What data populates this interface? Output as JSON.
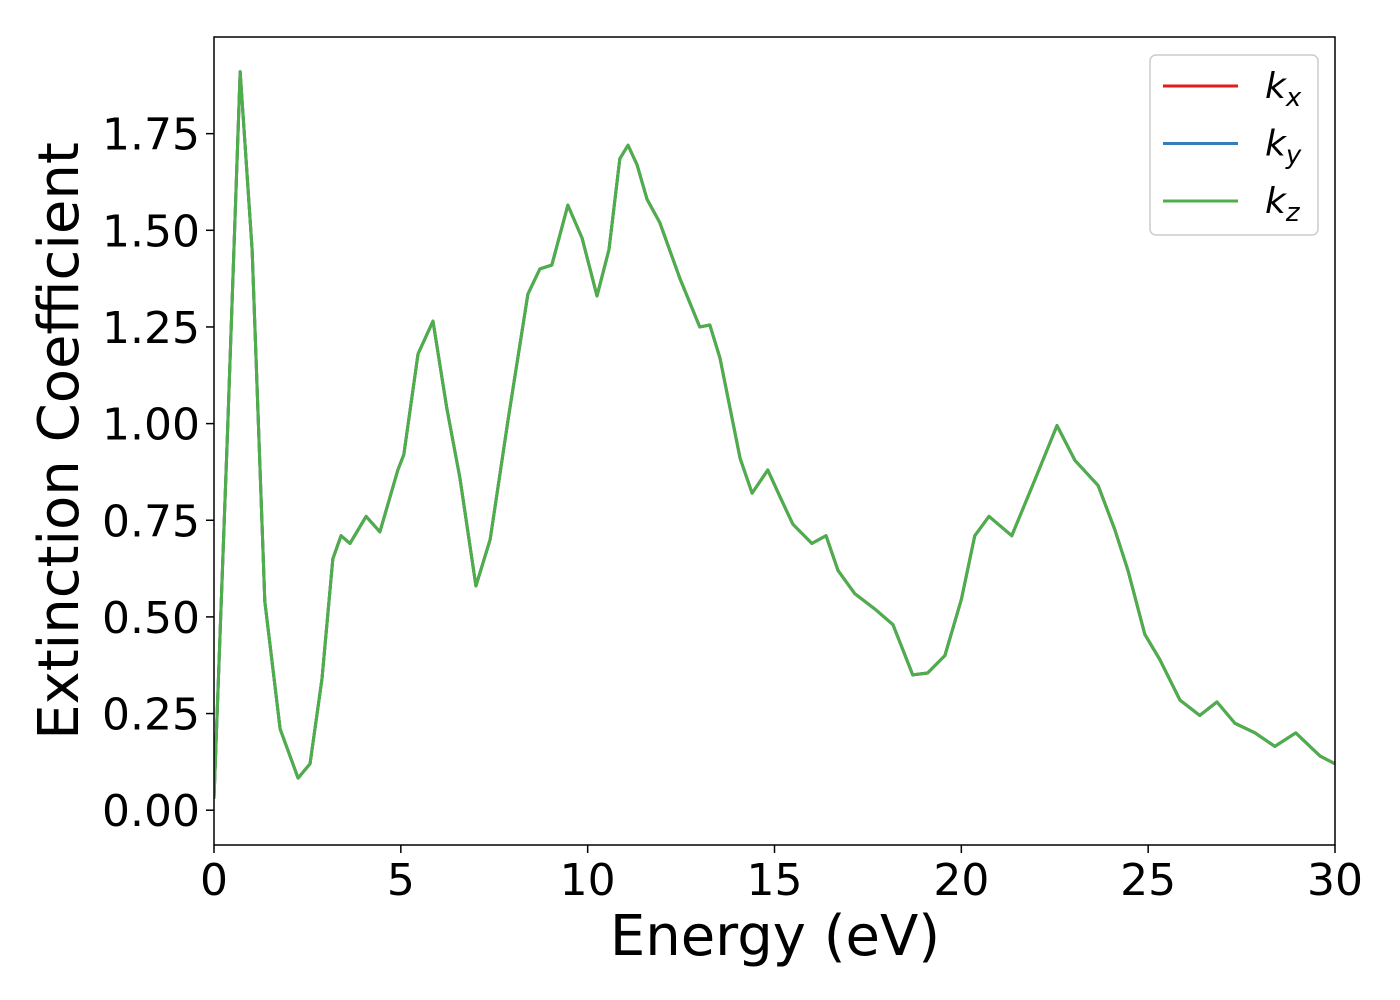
{
  "chart_data": {
    "type": "line",
    "xlabel": "Energy (eV)",
    "ylabel": "Extinction Coefficient",
    "x": [
      0,
      0.37,
      0.7,
      1.02,
      1.36,
      1.77,
      2.25,
      2.57,
      2.89,
      3.18,
      3.4,
      3.64,
      4.07,
      4.44,
      4.92,
      5.08,
      5.46,
      5.86,
      6.23,
      6.58,
      7.01,
      7.39,
      7.87,
      8.4,
      8.72,
      9.04,
      9.47,
      9.85,
      10.25,
      10.57,
      10.86,
      11.08,
      11.32,
      11.59,
      11.93,
      12.47,
      13.0,
      13.27,
      13.54,
      14.08,
      14.4,
      14.82,
      15.15,
      15.49,
      16.0,
      16.38,
      16.7,
      17.15,
      17.69,
      18.17,
      18.7,
      19.1,
      19.56,
      20.0,
      20.36,
      20.74,
      21.35,
      21.97,
      22.56,
      23.04,
      23.66,
      24.11,
      24.46,
      24.91,
      25.31,
      25.85,
      26.38,
      26.84,
      27.32,
      27.86,
      28.39,
      28.95,
      29.6,
      30.0
    ],
    "series": [
      {
        "name": "kx",
        "color": "#e41a1c",
        "values": [
          0.03,
          1.0,
          1.91,
          1.45,
          0.54,
          0.21,
          0.083,
          0.12,
          0.34,
          0.65,
          0.71,
          0.69,
          0.76,
          0.72,
          0.88,
          0.92,
          1.18,
          1.265,
          1.04,
          0.86,
          0.58,
          0.7,
          1.01,
          1.335,
          1.4,
          1.41,
          1.565,
          1.48,
          1.33,
          1.45,
          1.685,
          1.72,
          1.67,
          1.58,
          1.52,
          1.375,
          1.25,
          1.255,
          1.17,
          0.91,
          0.82,
          0.88,
          0.81,
          0.74,
          0.69,
          0.71,
          0.62,
          0.56,
          0.52,
          0.48,
          0.35,
          0.355,
          0.4,
          0.545,
          0.71,
          0.76,
          0.71,
          0.855,
          0.995,
          0.905,
          0.84,
          0.725,
          0.62,
          0.455,
          0.39,
          0.285,
          0.245,
          0.28,
          0.225,
          0.2,
          0.165,
          0.2,
          0.14,
          0.12
        ]
      },
      {
        "name": "ky",
        "color": "#377eb8",
        "values": [
          0.03,
          1.0,
          1.91,
          1.45,
          0.54,
          0.21,
          0.083,
          0.12,
          0.34,
          0.65,
          0.71,
          0.69,
          0.76,
          0.72,
          0.88,
          0.92,
          1.18,
          1.265,
          1.04,
          0.86,
          0.58,
          0.7,
          1.01,
          1.335,
          1.4,
          1.41,
          1.565,
          1.48,
          1.33,
          1.45,
          1.685,
          1.72,
          1.67,
          1.58,
          1.52,
          1.375,
          1.25,
          1.255,
          1.17,
          0.91,
          0.82,
          0.88,
          0.81,
          0.74,
          0.69,
          0.71,
          0.62,
          0.56,
          0.52,
          0.48,
          0.35,
          0.355,
          0.4,
          0.545,
          0.71,
          0.76,
          0.71,
          0.855,
          0.995,
          0.905,
          0.84,
          0.725,
          0.62,
          0.455,
          0.39,
          0.285,
          0.245,
          0.28,
          0.225,
          0.2,
          0.165,
          0.2,
          0.14,
          0.12
        ]
      },
      {
        "name": "kz",
        "color": "#4daf4a",
        "values": [
          0.03,
          1.0,
          1.91,
          1.45,
          0.54,
          0.21,
          0.083,
          0.12,
          0.34,
          0.65,
          0.71,
          0.69,
          0.76,
          0.72,
          0.88,
          0.92,
          1.18,
          1.265,
          1.04,
          0.86,
          0.58,
          0.7,
          1.01,
          1.335,
          1.4,
          1.41,
          1.565,
          1.48,
          1.33,
          1.45,
          1.685,
          1.72,
          1.67,
          1.58,
          1.52,
          1.375,
          1.25,
          1.255,
          1.17,
          0.91,
          0.82,
          0.88,
          0.81,
          0.74,
          0.69,
          0.71,
          0.62,
          0.56,
          0.52,
          0.48,
          0.35,
          0.355,
          0.4,
          0.545,
          0.71,
          0.76,
          0.71,
          0.855,
          0.995,
          0.905,
          0.84,
          0.725,
          0.62,
          0.455,
          0.39,
          0.285,
          0.245,
          0.28,
          0.225,
          0.2,
          0.165,
          0.2,
          0.14,
          0.12
        ]
      }
    ],
    "xlim": [
      0,
      30
    ],
    "xticks": [
      0,
      5,
      10,
      15,
      20,
      25,
      30
    ],
    "ylim": [
      -0.09,
      2.0
    ],
    "yticks": [
      {
        "value": 0,
        "label": "0.00"
      },
      {
        "value": 0.25,
        "label": "0.25"
      },
      {
        "value": 0.5,
        "label": "0.50"
      },
      {
        "value": 0.75,
        "label": "0.75"
      },
      {
        "value": 1,
        "label": "1.00"
      },
      {
        "value": 1.25,
        "label": "1.25"
      },
      {
        "value": 1.5,
        "label": "1.50"
      },
      {
        "value": 1.75,
        "label": "1.75"
      }
    ],
    "legend": "upper right"
  }
}
